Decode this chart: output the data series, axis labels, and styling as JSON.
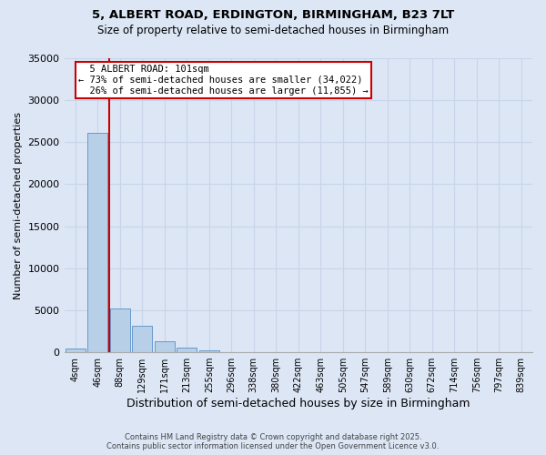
{
  "title_line1": "5, ALBERT ROAD, ERDINGTON, BIRMINGHAM, B23 7LT",
  "title_line2": "Size of property relative to semi-detached houses in Birmingham",
  "xlabel": "Distribution of semi-detached houses by size in Birmingham",
  "ylabel": "Number of semi-detached properties",
  "footer_line1": "Contains HM Land Registry data © Crown copyright and database right 2025.",
  "footer_line2": "Contains public sector information licensed under the Open Government Licence v3.0.",
  "bins": [
    "4sqm",
    "46sqm",
    "88sqm",
    "129sqm",
    "171sqm",
    "213sqm",
    "255sqm",
    "296sqm",
    "338sqm",
    "380sqm",
    "422sqm",
    "463sqm",
    "505sqm",
    "547sqm",
    "589sqm",
    "630sqm",
    "672sqm",
    "714sqm",
    "756sqm",
    "797sqm",
    "839sqm"
  ],
  "bar_heights": [
    400,
    26100,
    5200,
    3100,
    1300,
    500,
    200,
    0,
    0,
    0,
    0,
    0,
    0,
    0,
    0,
    0,
    0,
    0,
    0,
    0,
    0
  ],
  "bar_color": "#b8cfe8",
  "bar_edge_color": "#6699cc",
  "grid_color": "#c8d4e8",
  "bg_color": "#dce6f5",
  "property_size_label": "5 ALBERT ROAD: 101sqm",
  "pct_smaller": 73,
  "count_smaller": 34022,
  "pct_larger": 26,
  "count_larger": 11855,
  "vline_color": "#cc0000",
  "annotation_box_color": "#cc0000",
  "ylim": [
    0,
    35000
  ],
  "yticks": [
    0,
    5000,
    10000,
    15000,
    20000,
    25000,
    30000,
    35000
  ]
}
